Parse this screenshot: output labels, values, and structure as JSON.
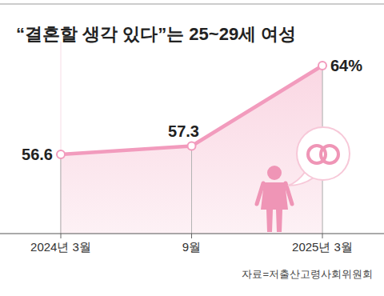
{
  "chart_data": {
    "type": "line",
    "title": "“결혼할 생각 있다”는 25~29세 여성",
    "categories": [
      "2024년 3월",
      "9월",
      "2025년 3월"
    ],
    "values": [
      56.6,
      57.3,
      64
    ],
    "value_labels": [
      "56.6",
      "57.3",
      "64%"
    ],
    "color": "#f29bbd",
    "marker": "circle",
    "ylim": [
      50,
      66
    ],
    "grid": false,
    "data_labels": true,
    "tick_labels": "x",
    "annotations": [
      "자료=저출산고령사회위원회"
    ]
  }
}
